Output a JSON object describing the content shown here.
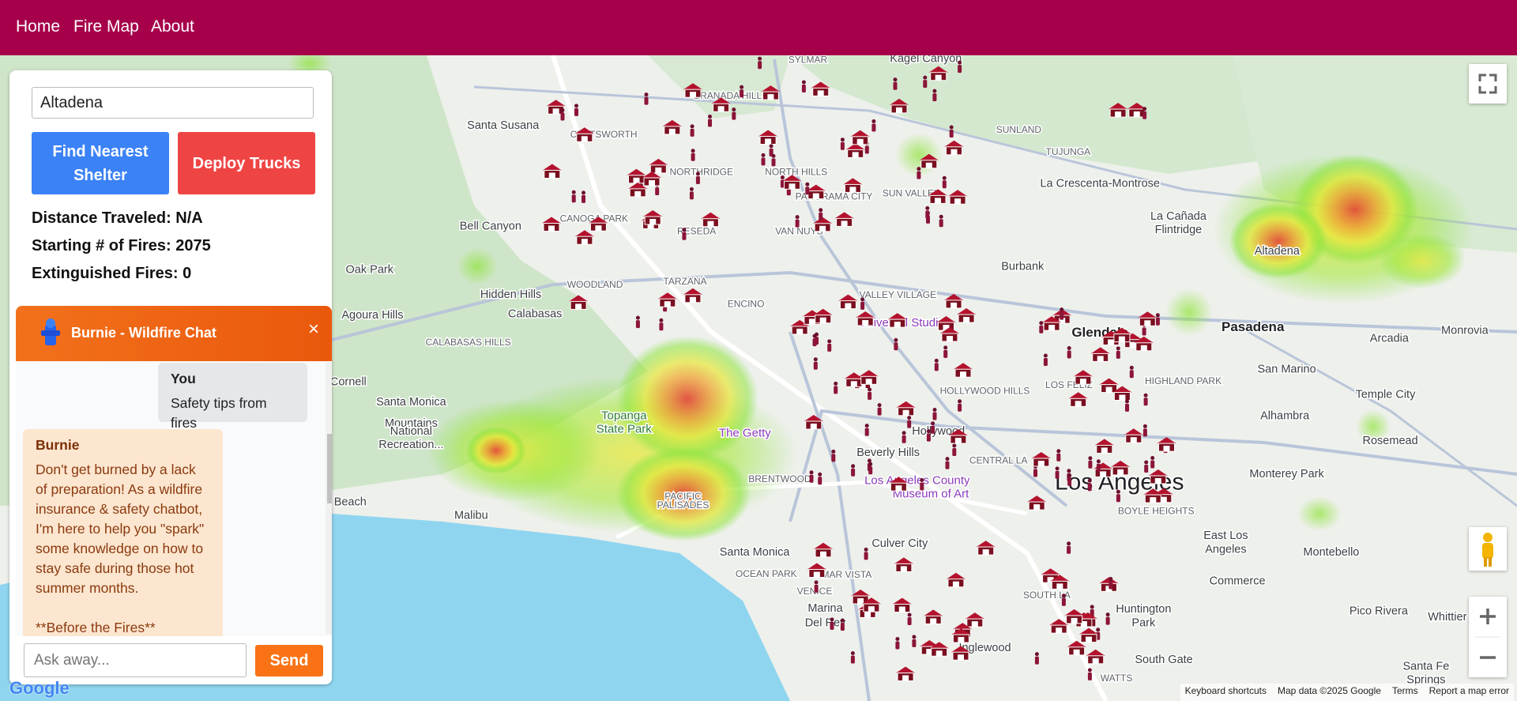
{
  "nav": {
    "links": [
      "Home",
      "Fire Map",
      "About"
    ]
  },
  "panel": {
    "search_value": "Altadena",
    "buttons": [
      "Find Nearest Shelter",
      "Deploy Trucks"
    ],
    "stats": [
      "Distance Traveled: N/A",
      "Starting # of Fires: 2075",
      "Extinguished Fires: 0"
    ]
  },
  "chat": {
    "title": "Burnie - Wildfire Chat",
    "close": "×",
    "messages": [
      {
        "sender": "You",
        "text": "Safety tips from fires"
      },
      {
        "sender": "Burnie",
        "text": "Don't get burned by a lack of preparation! As a wildfire insurance & safety chatbot, I'm here to help you \"spark\" some knowledge on how to stay safe during those hot summer months.\n\n**Before the Fires**"
      }
    ],
    "input_placeholder": "Ask away...",
    "send": "Send"
  },
  "map": {
    "labels": [
      "SYLMAR",
      "Kagel Canyon",
      "GRANADA HILLS",
      "SUNLAND",
      "Santa Susana",
      "CHATSWORTH",
      "NORTHRIDGE",
      "NORTH HILLS",
      "TUJUNGA",
      "La Crescenta-Montrose",
      "PANORAMA CITY",
      "SUN VALLEY",
      "Bell Canyon",
      "CANOGA PARK",
      "RESEDA",
      "VAN NUYS",
      "La Cañada",
      "Flintridge",
      "Burbank",
      "Altadena",
      "Oak Park",
      "Hidden Hills",
      "WOODLAND",
      "TARZANA",
      "ENCINO",
      "VALLEY VILLAGE",
      "Calabasas",
      "Agoura Hills",
      "CALABASAS HILLS",
      "Universal Studios",
      "Glendale",
      "Pasadena",
      "Arcadia",
      "Monrovia",
      "Cornell",
      "Santa Monica",
      "Mountains",
      "National",
      "Recreation...",
      "Topanga",
      "State Park",
      "The Getty",
      "HOLLYWOOD HILLS",
      "LOS FELIZ",
      "HIGHLAND PARK",
      "San Marino",
      "Temple City",
      "Alhambra",
      "Hollywood",
      "Beverly Hills",
      "CENTRAL LA",
      "Rosemead",
      "Monterey Park",
      "Los Angeles",
      "BOYLE HEIGHTS",
      "BRENTWOOD",
      "Los Angeles County",
      "Museum of Art",
      "PACIFIC",
      "PALISADES",
      "Malibu",
      "Beach",
      "Santa Monica",
      "Culver City",
      "East Los",
      "Angeles",
      "Montebello",
      "OCEAN PARK",
      "MAR VISTA",
      "VENICE",
      "Commerce",
      "Marina",
      "Del Rey",
      "Huntington",
      "Park",
      "Pico Rivera",
      "Whittier",
      "Inglewood",
      "South Gate",
      "SOUTH LA",
      "WATTS",
      "Santa Fe",
      "Springs"
    ],
    "footer": [
      "Keyboard shortcuts",
      "Map data ©2025 Google",
      "Terms",
      "Report a map error"
    ],
    "logo": "Google"
  }
}
